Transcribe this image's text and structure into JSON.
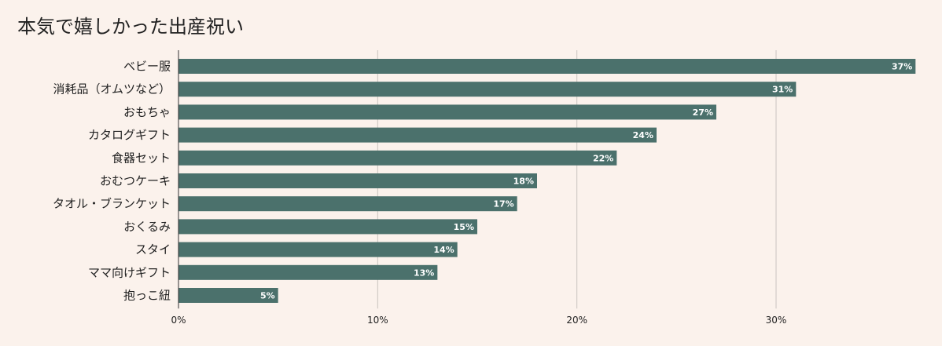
{
  "chart_data": {
    "type": "bar",
    "orientation": "horizontal",
    "title": "本気で嬉しかった出産祝い",
    "categories": [
      "ベビー服",
      "消耗品（オムツなど）",
      "おもちゃ",
      "カタログギフト",
      "食器セット",
      "おむつケーキ",
      "タオル・ブランケット",
      "おくるみ",
      "スタイ",
      "ママ向けギフト",
      "抱っこ紐"
    ],
    "values": [
      37,
      31,
      27,
      24,
      22,
      18,
      17,
      15,
      14,
      13,
      5
    ],
    "value_labels": [
      "37%",
      "31%",
      "27%",
      "24%",
      "22%",
      "18%",
      "17%",
      "15%",
      "14%",
      "13%",
      "5%"
    ],
    "x_ticks": [
      0,
      10,
      20,
      30
    ],
    "x_tick_labels": [
      "0%",
      "10%",
      "20%",
      "30%"
    ],
    "xlim": [
      0,
      37.5
    ],
    "grid": true,
    "bar_color": "#4b716c",
    "grid_color": "#c9c3bf",
    "xlabel": "",
    "ylabel": ""
  }
}
